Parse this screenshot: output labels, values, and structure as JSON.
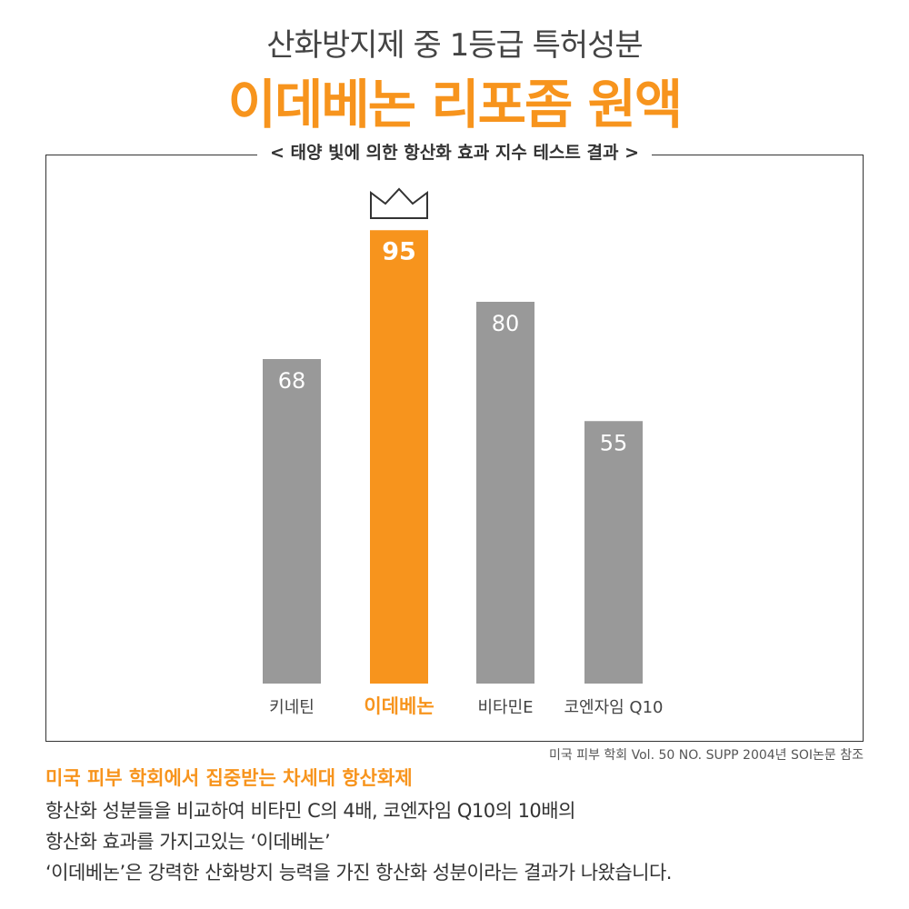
{
  "header": {
    "subtitle": "산화방지제 중 1등급 특허성분",
    "title": "이데베논 리포좀 원액"
  },
  "colors": {
    "accent": "#f7941d",
    "bar": "#999999",
    "text": "#333333"
  },
  "chart_data": {
    "type": "bar",
    "title": "< 태양 빛에 의한 항산화 효과 지수 테스트 결과 >",
    "categories": [
      "키네틴",
      "이데베논",
      "비타민E",
      "코엔자임 Q10"
    ],
    "values": [
      68,
      95,
      80,
      55
    ],
    "highlight_index": 1,
    "highlight_icon": "crown-icon",
    "ylim": [
      0,
      100
    ],
    "grid": false,
    "xlabel": "",
    "ylabel": ""
  },
  "footer": {
    "source": "미국 피부 학회 Vol. 50 NO. SUPP 2004년 SOI논문 참조",
    "highlight": "미국 피부 학회에서 집중받는 차세대 항산화제",
    "lines": [
      "항산화 성분들을 비교하여 비타민 C의 4배, 코엔자임 Q10의 10배의",
      "항산화 효과를 가지고있는 ‘이데베논’",
      "‘이데베논’은 강력한 산화방지 능력을 가진 항산화 성분이라는 결과가 나왔습니다."
    ]
  }
}
